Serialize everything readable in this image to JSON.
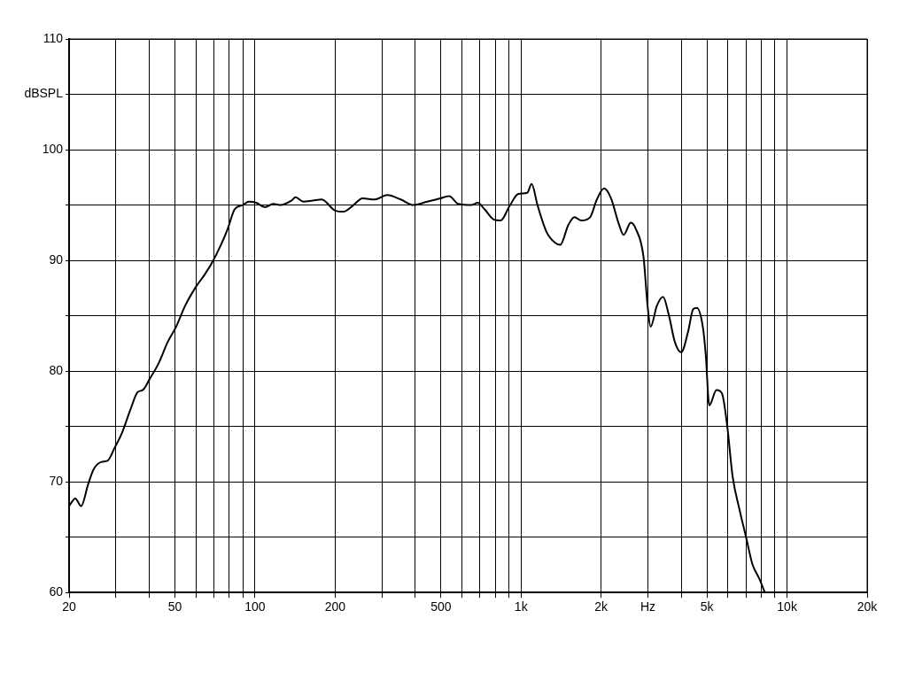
{
  "chart_data": {
    "type": "line",
    "log": "x",
    "grid": true,
    "legend": false,
    "marker": "none",
    "line_style": "solid",
    "xlim": [
      20,
      20000
    ],
    "xticks": [
      20,
      {
        "value": 30,
        "label": null
      },
      {
        "value": 40,
        "label": null
      },
      50,
      {
        "value": 60,
        "label": null
      },
      {
        "value": 70,
        "label": null
      },
      {
        "value": 80,
        "label": null
      },
      {
        "value": 90,
        "label": null
      },
      100,
      200,
      {
        "value": 300,
        "label": null
      },
      {
        "value": 400,
        "label": null
      },
      500,
      {
        "value": 600,
        "label": null
      },
      {
        "value": 700,
        "label": null
      },
      {
        "value": 800,
        "label": null
      },
      {
        "value": 900,
        "label": null
      },
      {
        "value": 1000,
        "label": "1k"
      },
      {
        "value": 2000,
        "label": "2k"
      },
      {
        "value": 3000,
        "label": "Hz"
      },
      {
        "value": 4000,
        "label": null
      },
      {
        "value": 5000,
        "label": "5k"
      },
      {
        "value": 6000,
        "label": null
      },
      {
        "value": 7000,
        "label": null
      },
      {
        "value": 8000,
        "label": null
      },
      {
        "value": 9000,
        "label": null
      },
      {
        "value": 10000,
        "label": "10k"
      },
      {
        "value": 20000,
        "label": "20k"
      }
    ],
    "ylim": [
      60,
      110
    ],
    "yticks": [
      60,
      {
        "value": 65,
        "label": null
      },
      70,
      {
        "value": 75,
        "label": null
      },
      80,
      {
        "value": 85,
        "label": null
      },
      90,
      {
        "value": 95,
        "label": null
      },
      100,
      {
        "value": 105,
        "label": "dBSPL"
      },
      110
    ],
    "series": [
      {
        "color": "#000000",
        "x": [
          20,
          21.1,
          22.2,
          23.6,
          24.7,
          26.5,
          27.9,
          29.7,
          31.6,
          34.1,
          36.2,
          37.9,
          40.2,
          43.4,
          46.9,
          50.5,
          54.6,
          59.9,
          64.6,
          68.6,
          74.1,
          78.8,
          83.8,
          89.9,
          94.8,
          101,
          109,
          117,
          125,
          137,
          142,
          152,
          165,
          178,
          200,
          215,
          232,
          254,
          281,
          314,
          353,
          394,
          444,
          497,
          537,
          580,
          651,
          687,
          730,
          788,
          838,
          905,
          977,
          1055,
          1096,
          1153,
          1245,
          1341,
          1404,
          1506,
          1588,
          1686,
          1818,
          1928,
          2052,
          2180,
          2323,
          2431,
          2585,
          2706,
          2887,
          2990,
          3070,
          3240,
          3420,
          3590,
          3790,
          4000,
          4240,
          4440,
          4580,
          4830,
          4950,
          5100,
          5430,
          5690,
          5960,
          6240,
          6640,
          7060,
          7400,
          7880,
          8250
        ],
        "values": [
          67.8,
          68.5,
          67.8,
          69.8,
          71.1,
          71.8,
          71.9,
          73.1,
          74.4,
          76.6,
          78.1,
          78.3,
          79.3,
          80.7,
          82.6,
          84.0,
          85.9,
          87.6,
          88.7,
          89.7,
          91.3,
          92.8,
          94.6,
          95.0,
          95.3,
          95.2,
          94.8,
          95.1,
          95.0,
          95.4,
          95.7,
          95.3,
          95.4,
          95.5,
          94.5,
          94.4,
          94.9,
          95.6,
          95.5,
          95.9,
          95.5,
          95.0,
          95.3,
          95.6,
          95.8,
          95.1,
          95.0,
          95.2,
          94.6,
          93.7,
          93.6,
          94.9,
          96.0,
          96.1,
          96.9,
          95.0,
          92.6,
          91.6,
          91.4,
          93.2,
          93.9,
          93.6,
          93.9,
          95.5,
          96.5,
          95.6,
          93.4,
          92.3,
          93.4,
          92.8,
          90.3,
          85.9,
          84.0,
          85.9,
          86.7,
          85.1,
          82.6,
          81.7,
          83.5,
          85.6,
          85.7,
          83.9,
          81.4,
          76.9,
          78.3,
          78.0,
          75.0,
          70.5,
          67.4,
          64.7,
          62.6,
          61.2,
          60.0
        ]
      }
    ]
  }
}
